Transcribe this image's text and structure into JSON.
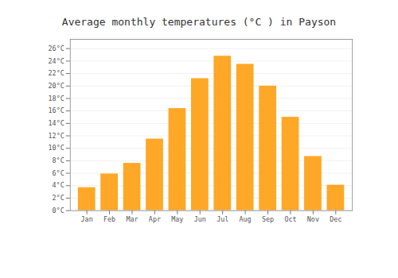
{
  "chart_data": {
    "type": "bar",
    "title": "Average monthly temperatures (°C ) in Payson",
    "categories": [
      "Jan",
      "Feb",
      "Mar",
      "Apr",
      "May",
      "Jun",
      "Jul",
      "Aug",
      "Sep",
      "Oct",
      "Nov",
      "Dec"
    ],
    "values": [
      3.7,
      5.9,
      7.6,
      11.5,
      16.4,
      21.2,
      24.8,
      23.5,
      20.0,
      15.0,
      8.7,
      4.1
    ],
    "color": "#FFA726",
    "ylim": [
      0,
      27.5
    ],
    "yticks": [
      {
        "value": 0,
        "label": "0°C"
      },
      {
        "value": 2,
        "label": "2°C"
      },
      {
        "value": 4,
        "label": "4°C"
      },
      {
        "value": 6,
        "label": "6°C"
      },
      {
        "value": 8,
        "label": "8°C"
      },
      {
        "value": 10,
        "label": "10°C"
      },
      {
        "value": 12,
        "label": "12°C"
      },
      {
        "value": 14,
        "label": "14°C"
      },
      {
        "value": 16,
        "label": "16°C"
      },
      {
        "value": 18,
        "label": "18°C"
      },
      {
        "value": 20,
        "label": "20°C"
      },
      {
        "value": 22,
        "label": "22°C"
      },
      {
        "value": 24,
        "label": "24°C"
      },
      {
        "value": 26,
        "label": "26°C"
      }
    ],
    "grid": true
  }
}
